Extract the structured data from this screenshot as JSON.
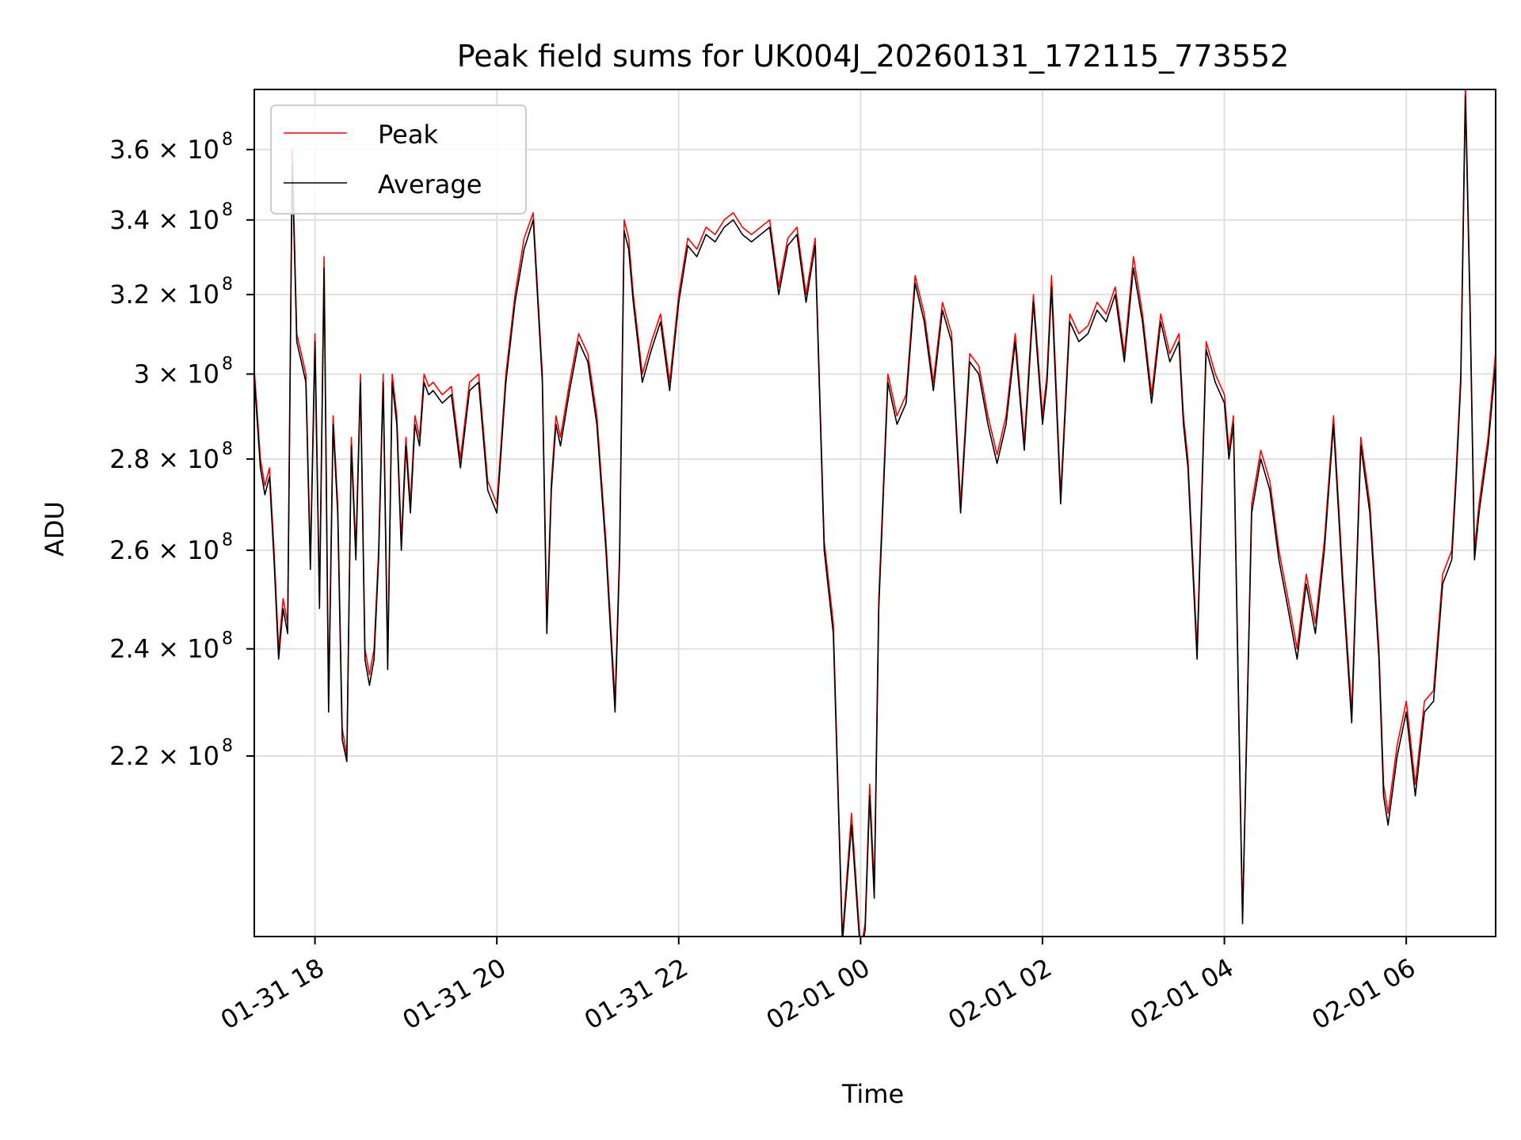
{
  "chart_data": {
    "type": "line",
    "title": "Peak field sums for UK004J_20260131_172115_773552",
    "xlabel": "Time",
    "ylabel": "ADU",
    "yscale": "log",
    "grid": true,
    "legend_position": "top-left",
    "xlim_hours": [
      -6.667,
      6.983
    ],
    "ylim": [
      190000000,
      378000000
    ],
    "x_ticks": [
      {
        "hour": -6,
        "label": "01-31 18"
      },
      {
        "hour": -4,
        "label": "01-31 20"
      },
      {
        "hour": -2,
        "label": "01-31 22"
      },
      {
        "hour": 0,
        "label": "02-01 00"
      },
      {
        "hour": 2,
        "label": "02-01 02"
      },
      {
        "hour": 4,
        "label": "02-01 04"
      },
      {
        "hour": 6,
        "label": "02-01 06"
      }
    ],
    "y_ticks": [
      {
        "value": 220000000,
        "mantissa": "2.2"
      },
      {
        "value": 240000000,
        "mantissa": "2.4"
      },
      {
        "value": 260000000,
        "mantissa": "2.6"
      },
      {
        "value": 280000000,
        "mantissa": "2.8"
      },
      {
        "value": 300000000,
        "mantissa": "3"
      },
      {
        "value": 320000000,
        "mantissa": "3.2"
      },
      {
        "value": 340000000,
        "mantissa": "3.4"
      },
      {
        "value": 360000000,
        "mantissa": "3.6"
      }
    ],
    "y_tick_suffix": "× 10",
    "y_tick_exponent": "8",
    "x_unit_note": "x values are hours relative to 02-01 00:00",
    "series": [
      {
        "name": "Peak",
        "color": "#ff0000",
        "x": [
          -6.67,
          -6.6,
          -6.55,
          -6.5,
          -6.45,
          -6.4,
          -6.35,
          -6.3,
          -6.25,
          -6.2,
          -6.15,
          -6.1,
          -6.05,
          -6.0,
          -5.95,
          -5.9,
          -5.85,
          -5.8,
          -5.75,
          -5.7,
          -5.65,
          -5.6,
          -5.55,
          -5.5,
          -5.45,
          -5.4,
          -5.35,
          -5.3,
          -5.25,
          -5.2,
          -5.15,
          -5.1,
          -5.05,
          -5.0,
          -4.95,
          -4.9,
          -4.85,
          -4.8,
          -4.75,
          -4.7,
          -4.6,
          -4.5,
          -4.4,
          -4.3,
          -4.2,
          -4.1,
          -4.0,
          -3.9,
          -3.8,
          -3.7,
          -3.6,
          -3.5,
          -3.45,
          -3.4,
          -3.35,
          -3.3,
          -3.2,
          -3.1,
          -3.0,
          -2.9,
          -2.8,
          -2.7,
          -2.65,
          -2.6,
          -2.55,
          -2.5,
          -2.45,
          -2.4,
          -2.3,
          -2.2,
          -2.1,
          -2.0,
          -1.9,
          -1.8,
          -1.7,
          -1.6,
          -1.5,
          -1.4,
          -1.3,
          -1.2,
          -1.1,
          -1.0,
          -0.9,
          -0.8,
          -0.7,
          -0.6,
          -0.5,
          -0.4,
          -0.3,
          -0.2,
          -0.1,
          0.0,
          0.05,
          0.1,
          0.15,
          0.2,
          0.3,
          0.4,
          0.5,
          0.6,
          0.7,
          0.8,
          0.9,
          1.0,
          1.1,
          1.2,
          1.3,
          1.4,
          1.5,
          1.6,
          1.7,
          1.8,
          1.9,
          2.0,
          2.05,
          2.1,
          2.2,
          2.3,
          2.4,
          2.5,
          2.6,
          2.7,
          2.8,
          2.9,
          3.0,
          3.1,
          3.2,
          3.3,
          3.4,
          3.5,
          3.55,
          3.6,
          3.7,
          3.8,
          3.9,
          4.0,
          4.05,
          4.1,
          4.2,
          4.3,
          4.4,
          4.5,
          4.6,
          4.7,
          4.8,
          4.9,
          5.0,
          5.1,
          5.2,
          5.3,
          5.4,
          5.5,
          5.6,
          5.7,
          5.75,
          5.8,
          5.9,
          6.0,
          6.1,
          6.2,
          6.3,
          6.4,
          6.5,
          6.55,
          6.6,
          6.65,
          6.7,
          6.75,
          6.8,
          6.9,
          6.98
        ],
        "values": [
          302,
          280,
          274,
          278,
          260,
          240,
          250,
          245,
          360,
          310,
          305,
          300,
          258,
          310,
          250,
          330,
          230,
          290,
          270,
          225,
          220,
          285,
          260,
          300,
          240,
          235,
          240,
          260,
          300,
          238,
          300,
          290,
          262,
          285,
          270,
          290,
          285,
          300,
          297,
          298,
          295,
          297,
          280,
          298,
          300,
          275,
          270,
          300,
          320,
          335,
          342,
          300,
          245,
          275,
          290,
          285,
          298,
          310,
          305,
          290,
          262,
          230,
          260,
          340,
          335,
          320,
          310,
          300,
          308,
          315,
          298,
          320,
          335,
          332,
          338,
          336,
          340,
          342,
          338,
          336,
          338,
          340,
          322,
          335,
          338,
          320,
          335,
          262,
          245,
          190,
          210,
          188,
          192,
          215,
          198,
          250,
          300,
          290,
          295,
          325,
          315,
          298,
          318,
          310,
          270,
          305,
          302,
          290,
          281,
          290,
          310,
          284,
          320,
          290,
          300,
          325,
          272,
          315,
          310,
          312,
          318,
          315,
          322,
          305,
          330,
          315,
          295,
          315,
          305,
          310,
          290,
          280,
          240,
          308,
          300,
          295,
          282,
          290,
          193,
          270,
          282,
          275,
          260,
          250,
          240,
          255,
          245,
          262,
          290,
          255,
          228,
          285,
          270,
          240,
          215,
          210,
          222,
          230,
          215,
          230,
          232,
          255,
          260,
          278,
          300,
          380,
          320,
          260,
          270,
          285,
          305
        ]
      },
      {
        "name": "Average",
        "color": "#000000",
        "x": [
          -6.67,
          -6.6,
          -6.55,
          -6.5,
          -6.45,
          -6.4,
          -6.35,
          -6.3,
          -6.25,
          -6.2,
          -6.15,
          -6.1,
          -6.05,
          -6.0,
          -5.95,
          -5.9,
          -5.85,
          -5.8,
          -5.75,
          -5.7,
          -5.65,
          -5.6,
          -5.55,
          -5.5,
          -5.45,
          -5.4,
          -5.35,
          -5.3,
          -5.25,
          -5.2,
          -5.15,
          -5.1,
          -5.05,
          -5.0,
          -4.95,
          -4.9,
          -4.85,
          -4.8,
          -4.75,
          -4.7,
          -4.6,
          -4.5,
          -4.4,
          -4.3,
          -4.2,
          -4.1,
          -4.0,
          -3.9,
          -3.8,
          -3.7,
          -3.6,
          -3.5,
          -3.45,
          -3.4,
          -3.35,
          -3.3,
          -3.2,
          -3.1,
          -3.0,
          -2.9,
          -2.8,
          -2.7,
          -2.65,
          -2.6,
          -2.55,
          -2.5,
          -2.45,
          -2.4,
          -2.3,
          -2.2,
          -2.1,
          -2.0,
          -1.9,
          -1.8,
          -1.7,
          -1.6,
          -1.5,
          -1.4,
          -1.3,
          -1.2,
          -1.1,
          -1.0,
          -0.9,
          -0.8,
          -0.7,
          -0.6,
          -0.5,
          -0.4,
          -0.3,
          -0.2,
          -0.1,
          0.0,
          0.05,
          0.1,
          0.15,
          0.2,
          0.3,
          0.4,
          0.5,
          0.6,
          0.7,
          0.8,
          0.9,
          1.0,
          1.1,
          1.2,
          1.3,
          1.4,
          1.5,
          1.6,
          1.7,
          1.8,
          1.9,
          2.0,
          2.05,
          2.1,
          2.2,
          2.3,
          2.4,
          2.5,
          2.6,
          2.7,
          2.8,
          2.9,
          3.0,
          3.1,
          3.2,
          3.3,
          3.4,
          3.5,
          3.55,
          3.6,
          3.7,
          3.8,
          3.9,
          4.0,
          4.05,
          4.1,
          4.2,
          4.3,
          4.4,
          4.5,
          4.6,
          4.7,
          4.8,
          4.9,
          5.0,
          5.1,
          5.2,
          5.3,
          5.4,
          5.5,
          5.6,
          5.7,
          5.75,
          5.8,
          5.9,
          6.0,
          6.1,
          6.2,
          6.3,
          6.4,
          6.5,
          6.55,
          6.6,
          6.65,
          6.7,
          6.75,
          6.8,
          6.9,
          6.98
        ],
        "values": [
          300,
          278,
          272,
          276,
          258,
          238,
          248,
          243,
          356,
          308,
          303,
          298,
          256,
          308,
          248,
          327,
          228,
          288,
          268,
          223,
          219,
          283,
          258,
          298,
          238,
          233,
          238,
          258,
          298,
          236,
          298,
          288,
          260,
          283,
          268,
          288,
          283,
          298,
          295,
          296,
          293,
          295,
          278,
          296,
          298,
          273,
          268,
          298,
          318,
          332,
          340,
          298,
          243,
          273,
          288,
          283,
          296,
          308,
          303,
          288,
          260,
          228,
          258,
          337,
          332,
          318,
          308,
          298,
          306,
          313,
          296,
          318,
          333,
          330,
          336,
          334,
          338,
          340,
          336,
          334,
          336,
          338,
          320,
          333,
          336,
          318,
          333,
          260,
          243,
          189,
          208,
          187,
          191,
          213,
          196,
          248,
          298,
          288,
          293,
          323,
          313,
          296,
          316,
          308,
          268,
          303,
          300,
          288,
          279,
          288,
          308,
          282,
          318,
          288,
          298,
          322,
          270,
          313,
          308,
          310,
          316,
          313,
          320,
          303,
          327,
          313,
          293,
          313,
          303,
          308,
          288,
          278,
          238,
          306,
          298,
          293,
          280,
          288,
          192,
          268,
          280,
          273,
          258,
          248,
          238,
          253,
          243,
          260,
          288,
          253,
          226,
          283,
          268,
          238,
          213,
          208,
          220,
          228,
          213,
          228,
          230,
          253,
          258,
          276,
          298,
          376,
          318,
          258,
          268,
          283,
          302
        ]
      }
    ],
    "values_scale_note": "values are in units of 1e6 ADU"
  }
}
